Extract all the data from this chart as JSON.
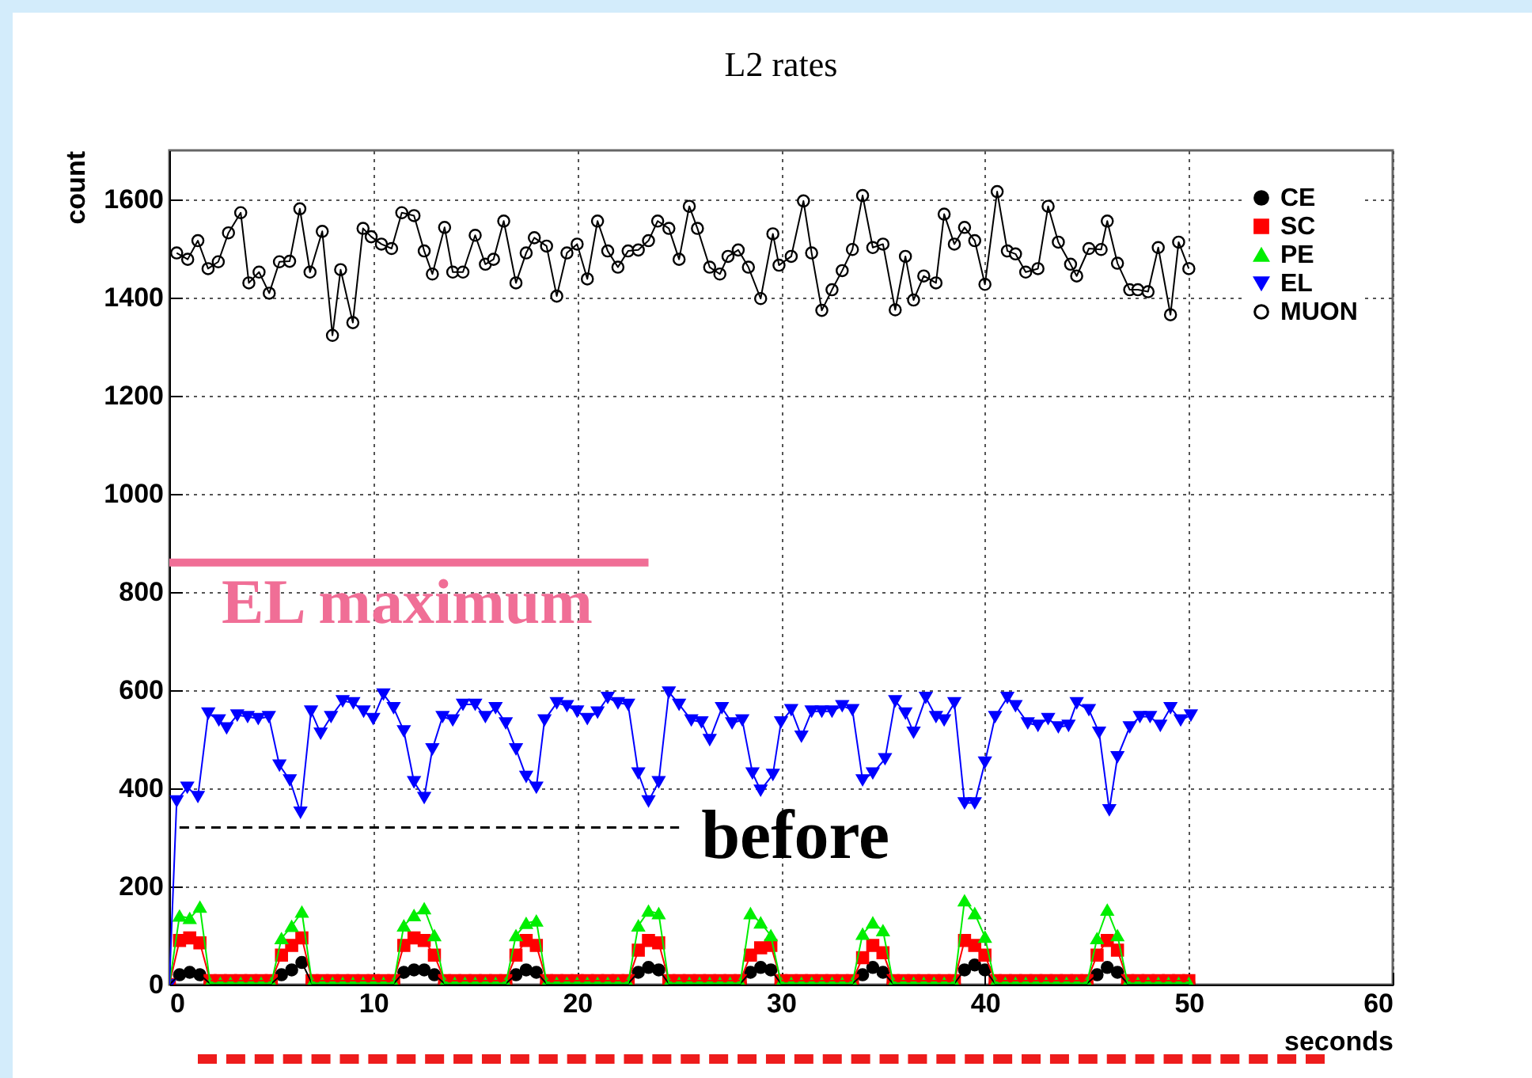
{
  "chart_data": {
    "type": "line",
    "title": "L2 rates",
    "xlabel": "seconds",
    "ylabel": "count",
    "xlim": [
      0,
      60
    ],
    "xticks": [
      0,
      10,
      20,
      30,
      40,
      50,
      60
    ],
    "ylim": [
      0,
      1700
    ],
    "yticks": [
      0,
      200,
      400,
      600,
      800,
      1000,
      1200,
      1400,
      1600
    ],
    "grid": true,
    "legend": "top right",
    "annotations": [
      {
        "text": "EL maximum",
        "x": 0,
        "y": 860
      },
      {
        "text": "before",
        "x": 25,
        "y": 320
      }
    ],
    "x": [
      0,
      0.5,
      1,
      1.5,
      2,
      2.5,
      3,
      3.5,
      4,
      4.5,
      5,
      5.5,
      6,
      6.5,
      7,
      7.5,
      8,
      8.5,
      9,
      9.5,
      10,
      10.5,
      11,
      11.5,
      12,
      12.5,
      13,
      13.5,
      14,
      14.5,
      15,
      15.5,
      16,
      16.5,
      17,
      17.5,
      18,
      18.5,
      19,
      19.5,
      20,
      20.5,
      21,
      21.5,
      22,
      22.5,
      23,
      23.5,
      24,
      24.5,
      25,
      25.5,
      26,
      26.5,
      27,
      27.5,
      28,
      28.5,
      29,
      29.5,
      30,
      30.5,
      31,
      31.5,
      32,
      32.5,
      33,
      33.5,
      34,
      34.5,
      35,
      35.5,
      36,
      36.5,
      37,
      37.5,
      38,
      38.5,
      39,
      39.5,
      40,
      40.5,
      41,
      41.5,
      42,
      42.5,
      43,
      43.5,
      44,
      44.5,
      45,
      45.5,
      46,
      46.5,
      47,
      47.5,
      48,
      48.5,
      49,
      49.5,
      50
    ],
    "series": [
      {
        "name": "CE",
        "color": "#000000",
        "marker": "circle",
        "values": [
          0,
          20,
          25,
          20,
          2,
          2,
          2,
          2,
          2,
          2,
          2,
          20,
          30,
          45,
          2,
          2,
          2,
          2,
          2,
          2,
          2,
          2,
          2,
          25,
          30,
          30,
          20,
          2,
          2,
          2,
          2,
          2,
          2,
          2,
          20,
          30,
          25,
          2,
          2,
          2,
          2,
          2,
          2,
          2,
          2,
          2,
          25,
          35,
          30,
          2,
          2,
          2,
          2,
          2,
          2,
          2,
          2,
          25,
          35,
          30,
          2,
          2,
          2,
          2,
          2,
          2,
          2,
          2,
          20,
          35,
          25,
          2,
          2,
          2,
          2,
          2,
          2,
          2,
          30,
          40,
          30,
          2,
          2,
          2,
          2,
          2,
          2,
          2,
          2,
          2,
          2,
          20,
          35,
          25,
          2,
          2,
          2,
          2,
          2,
          2,
          2
        ]
      },
      {
        "name": "SC",
        "color": "#ff0000",
        "marker": "square",
        "values": [
          0,
          90,
          95,
          85,
          8,
          8,
          8,
          8,
          8,
          8,
          8,
          60,
          80,
          95,
          8,
          8,
          8,
          8,
          8,
          8,
          8,
          8,
          8,
          80,
          95,
          90,
          60,
          8,
          8,
          8,
          8,
          8,
          8,
          8,
          60,
          90,
          80,
          8,
          8,
          8,
          8,
          8,
          8,
          8,
          8,
          8,
          70,
          90,
          85,
          8,
          8,
          8,
          8,
          8,
          8,
          8,
          8,
          60,
          75,
          80,
          8,
          8,
          8,
          8,
          8,
          8,
          8,
          8,
          55,
          80,
          65,
          8,
          8,
          8,
          8,
          8,
          8,
          8,
          90,
          80,
          60,
          8,
          8,
          8,
          8,
          8,
          8,
          8,
          8,
          8,
          8,
          60,
          90,
          70,
          8,
          8,
          8,
          8,
          8,
          8,
          8
        ]
      },
      {
        "name": "PE",
        "color": "#00ee00",
        "marker": "triangle",
        "values": [
          0,
          140,
          135,
          158,
          3,
          3,
          3,
          3,
          3,
          3,
          3,
          94,
          119,
          148,
          3,
          3,
          3,
          3,
          3,
          3,
          3,
          3,
          3,
          120,
          141,
          155,
          100,
          3,
          3,
          3,
          3,
          3,
          3,
          3,
          100,
          125,
          130,
          3,
          3,
          3,
          3,
          3,
          3,
          3,
          3,
          3,
          120,
          150,
          145,
          3,
          3,
          3,
          3,
          3,
          3,
          3,
          3,
          145,
          126,
          100,
          3,
          3,
          3,
          3,
          3,
          3,
          3,
          3,
          103,
          126,
          110,
          3,
          3,
          3,
          3,
          3,
          3,
          3,
          171,
          145,
          97,
          3,
          3,
          3,
          3,
          3,
          3,
          3,
          3,
          3,
          3,
          94,
          152,
          100,
          3,
          3,
          3,
          3,
          3,
          3,
          3
        ]
      },
      {
        "name": "EL",
        "color": "#0000ff",
        "marker": "triangle-down",
        "x": [
          0,
          0.36,
          0.88,
          1.4,
          1.91,
          2.43,
          2.81,
          3.33,
          3.84,
          4.36,
          4.88,
          5.4,
          5.91,
          6.43,
          6.95,
          7.42,
          7.93,
          8.5,
          9.02,
          9.53,
          10,
          10.5,
          11,
          11.5,
          12,
          12.5,
          12.9,
          13.4,
          13.9,
          14.4,
          15,
          15.5,
          16,
          16.5,
          17,
          17.5,
          18,
          18.4,
          19,
          19.5,
          20,
          20.5,
          21,
          21.5,
          22,
          22.5,
          23,
          23.5,
          24,
          24.5,
          25,
          25.6,
          26.1,
          26.5,
          27.1,
          27.6,
          28.1,
          28.6,
          29,
          29.6,
          30,
          30.5,
          31,
          31.5,
          32,
          32.5,
          33,
          33.5,
          34,
          34.5,
          35.1,
          35.6,
          36.1,
          36.5,
          37.1,
          37.6,
          38,
          38.5,
          39,
          39.5,
          40,
          40.5,
          41.1,
          41.5,
          42.1,
          42.6,
          43.1,
          43.6,
          44.1,
          44.5,
          45.1,
          45.6,
          46.1,
          46.5,
          47.1,
          47.6,
          48.1,
          48.6,
          49.1,
          49.6,
          50.1
        ],
        "values": [
          0,
          374,
          402,
          383,
          553,
          539,
          523,
          549,
          546,
          542,
          546,
          447,
          417,
          351,
          557,
          512,
          546,
          578,
          574,
          557,
          542,
          592,
          564,
          517,
          413,
          381,
          480,
          546,
          539,
          571,
          571,
          546,
          564,
          533,
          480,
          424,
          402,
          539,
          574,
          568,
          557,
          542,
          555,
          585,
          574,
          571,
          431,
          374,
          413,
          596,
          571,
          539,
          535,
          499,
          564,
          533,
          539,
          431,
          396,
          428,
          535,
          560,
          506,
          557,
          557,
          557,
          568,
          560,
          417,
          431,
          460,
          578,
          553,
          514,
          585,
          546,
          539,
          574,
          370,
          370,
          453,
          546,
          585,
          568,
          533,
          528,
          542,
          525,
          528,
          574,
          560,
          514,
          356,
          464,
          525,
          546,
          546,
          528,
          564,
          539,
          549
        ]
      },
      {
        "name": "MUON",
        "color": "#000000",
        "marker": "circle-open",
        "x": [
          0.36,
          0.9,
          1.4,
          1.9,
          2.4,
          2.9,
          3.5,
          3.9,
          4.4,
          4.9,
          5.4,
          5.9,
          6.4,
          6.9,
          7.5,
          8,
          8.4,
          9,
          9.5,
          9.9,
          10.4,
          10.9,
          11.4,
          12,
          12.5,
          12.9,
          13.5,
          13.9,
          14.4,
          15,
          15.5,
          15.9,
          16.4,
          17,
          17.5,
          17.9,
          18.5,
          19,
          19.5,
          20,
          20.5,
          21,
          21.5,
          22,
          22.5,
          23,
          23.5,
          23.95,
          24.5,
          25,
          25.5,
          25.9,
          26.5,
          27,
          27.4,
          27.9,
          28.4,
          29,
          29.6,
          29.9,
          30.5,
          31.1,
          31.5,
          32,
          32.5,
          33,
          33.5,
          34,
          34.5,
          35,
          35.6,
          36.1,
          36.5,
          37,
          37.6,
          38,
          38.5,
          39,
          39.5,
          40,
          40.6,
          41.1,
          41.5,
          42,
          42.6,
          43.1,
          43.6,
          44.2,
          44.5,
          45.1,
          45.7,
          46,
          46.5,
          47.1,
          47.5,
          48,
          48.5,
          49.1,
          49.5,
          50
        ],
        "values": [
          1491,
          1478,
          1516,
          1459,
          1473,
          1532,
          1573,
          1430,
          1452,
          1409,
          1473,
          1474,
          1581,
          1452,
          1535,
          1323,
          1457,
          1349,
          1541,
          1524,
          1509,
          1500,
          1573,
          1567,
          1495,
          1448,
          1543,
          1452,
          1452,
          1527,
          1468,
          1478,
          1556,
          1430,
          1491,
          1522,
          1505,
          1403,
          1491,
          1509,
          1438,
          1556,
          1495,
          1462,
          1495,
          1497,
          1516,
          1556,
          1541,
          1478,
          1586,
          1541,
          1462,
          1448,
          1484,
          1497,
          1462,
          1398,
          1530,
          1466,
          1484,
          1597,
          1491,
          1374,
          1416,
          1455,
          1498,
          1608,
          1502,
          1509,
          1375,
          1484,
          1395,
          1444,
          1430,
          1570,
          1509,
          1543,
          1516,
          1427,
          1616,
          1495,
          1489,
          1452,
          1459,
          1586,
          1513,
          1468,
          1444,
          1500,
          1498,
          1556,
          1470,
          1416,
          1416,
          1412,
          1502,
          1365,
          1513,
          1459
        ]
      },
      {
        "type": "line",
        "color": "#f06e96",
        "marker": "none",
        "line_style": "solid",
        "x": [
          0,
          23.5
        ],
        "values": [
          860,
          860
        ]
      },
      {
        "type": "line",
        "color": "#000000",
        "marker": "none",
        "line_style": "dashed",
        "x": [
          0.5,
          25
        ],
        "values": [
          320,
          320
        ]
      }
    ]
  }
}
